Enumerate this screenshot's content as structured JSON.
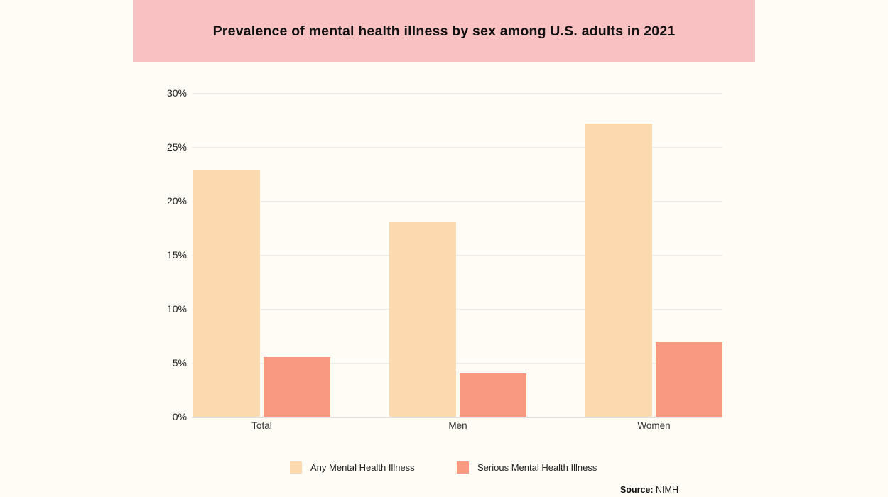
{
  "title": "Prevalence of mental health illness by sex among U.S. adults in 2021",
  "source": {
    "label": "Source:",
    "value": "NIMH"
  },
  "colors": {
    "background": "#FFFCF6",
    "banner": "#FAC1C3",
    "gridline": "#EEECE9",
    "axis_line": "#E3E1DE",
    "text": "#1C1C1C"
  },
  "chart_data": {
    "type": "bar",
    "title": "Prevalence of mental health illness by sex among U.S. adults in 2021",
    "categories": [
      "Total",
      "Men",
      "Women"
    ],
    "series": [
      {
        "name": "Any Mental Health Illness",
        "color": "#FCD9AE",
        "values": [
          22.8,
          18.1,
          27.2
        ]
      },
      {
        "name": "Serious Mental Health Illness",
        "color": "#F99981",
        "values": [
          5.5,
          4.0,
          7.0
        ]
      }
    ],
    "xlabel": "",
    "ylabel": "",
    "ylim": [
      0,
      30
    ],
    "ytick_step": 5,
    "ytick_labels": [
      "0%",
      "5%",
      "10%",
      "15%",
      "20%",
      "25%",
      "30%"
    ],
    "grid": true,
    "legend_position": "bottom"
  }
}
